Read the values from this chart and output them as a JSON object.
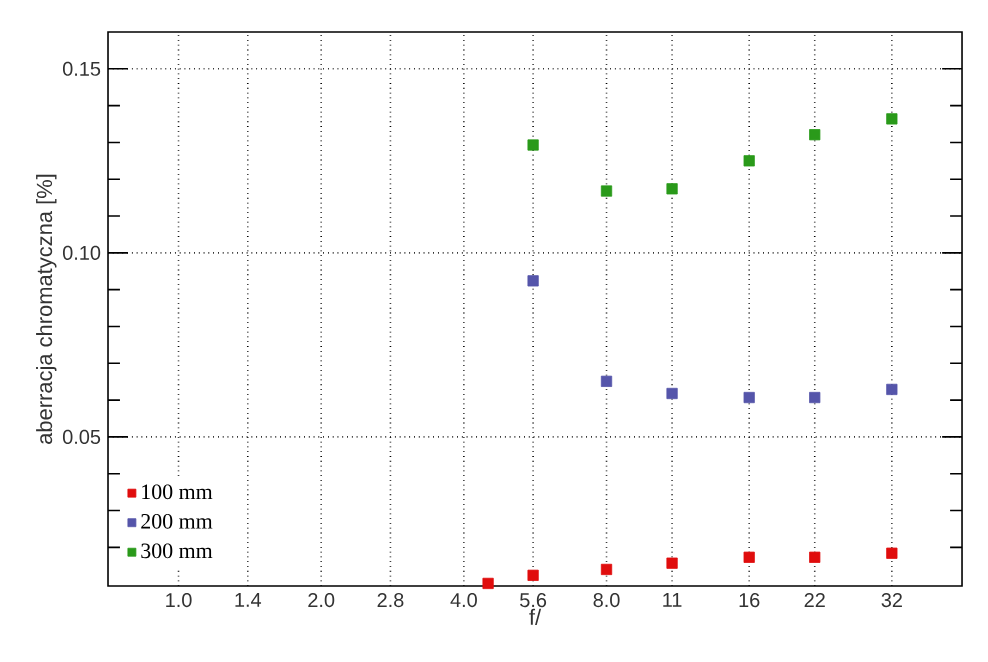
{
  "chart_data": {
    "type": "scatter",
    "xlabel": "f/",
    "ylabel": "aberracja chromatyczna [%]",
    "log": "x",
    "xlim": [
      0.71,
      45
    ],
    "ylim": [
      0.0095,
      0.16
    ],
    "xticks": [
      {
        "value": 1.0,
        "label": "1.0"
      },
      {
        "value": 1.4,
        "label": "1.4"
      },
      {
        "value": 2.0,
        "label": "2.0"
      },
      {
        "value": 2.8,
        "label": "2.8"
      },
      {
        "value": 4.0,
        "label": "4.0"
      },
      {
        "value": 5.6,
        "label": "5.6"
      },
      {
        "value": 8.0,
        "label": "8.0"
      },
      {
        "value": 11,
        "label": "11"
      },
      {
        "value": 16,
        "label": "16"
      },
      {
        "value": 22,
        "label": "22"
      },
      {
        "value": 32,
        "label": "32"
      }
    ],
    "yticks": [
      {
        "value": 0.02,
        "label": null
      },
      {
        "value": 0.03,
        "label": null
      },
      {
        "value": 0.04,
        "label": null
      },
      {
        "value": 0.05,
        "label": "0.05"
      },
      {
        "value": 0.06,
        "label": null
      },
      {
        "value": 0.07,
        "label": null
      },
      {
        "value": 0.08,
        "label": null
      },
      {
        "value": 0.09,
        "label": null
      },
      {
        "value": 0.1,
        "label": "0.10"
      },
      {
        "value": 0.11,
        "label": null
      },
      {
        "value": 0.12,
        "label": null
      },
      {
        "value": 0.13,
        "label": null
      },
      {
        "value": 0.14,
        "label": null
      },
      {
        "value": 0.15,
        "label": "0.15"
      }
    ],
    "grid": true,
    "legend": "bottom left",
    "marker": "square",
    "series": [
      {
        "name": "100 mm",
        "color": "#e00d0d",
        "x": [
          4.5,
          5.6,
          8.0,
          11,
          16,
          22,
          32
        ],
        "values": [
          0.0102,
          0.0124,
          0.014,
          0.0157,
          0.0173,
          0.0173,
          0.0184
        ]
      },
      {
        "name": "200 mm",
        "color": "#5555aa",
        "x": [
          5.6,
          8.0,
          11,
          16,
          22,
          32
        ],
        "values": [
          0.0924,
          0.0651,
          0.0618,
          0.0607,
          0.0607,
          0.0629
        ]
      },
      {
        "name": "300 mm",
        "color": "#2a9a1a",
        "x": [
          5.6,
          8.0,
          11,
          16,
          22,
          32
        ],
        "values": [
          0.1293,
          0.1168,
          0.1174,
          0.125,
          0.1321,
          0.1364
        ]
      }
    ]
  }
}
